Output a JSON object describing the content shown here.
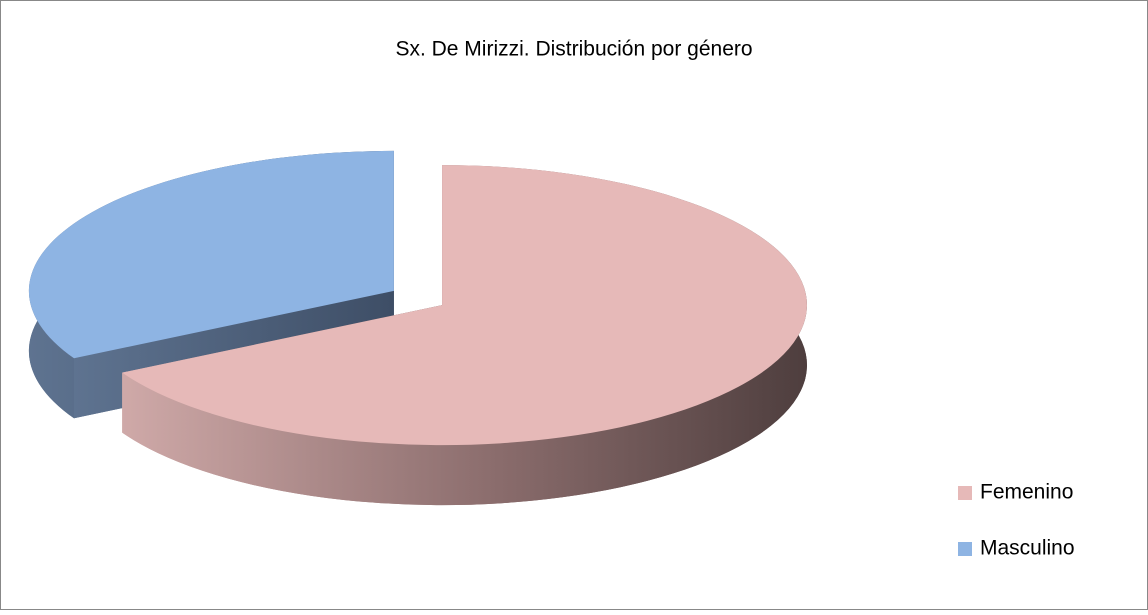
{
  "chart_data": {
    "type": "pie",
    "title": "Sx. De Mirizzi. Distribución por género",
    "categories": [
      "Femenino",
      "Masculino"
    ],
    "values": [
      67,
      33
    ],
    "colors": [
      "#e6b9b8",
      "#8eb4e3"
    ],
    "legend": "right"
  }
}
